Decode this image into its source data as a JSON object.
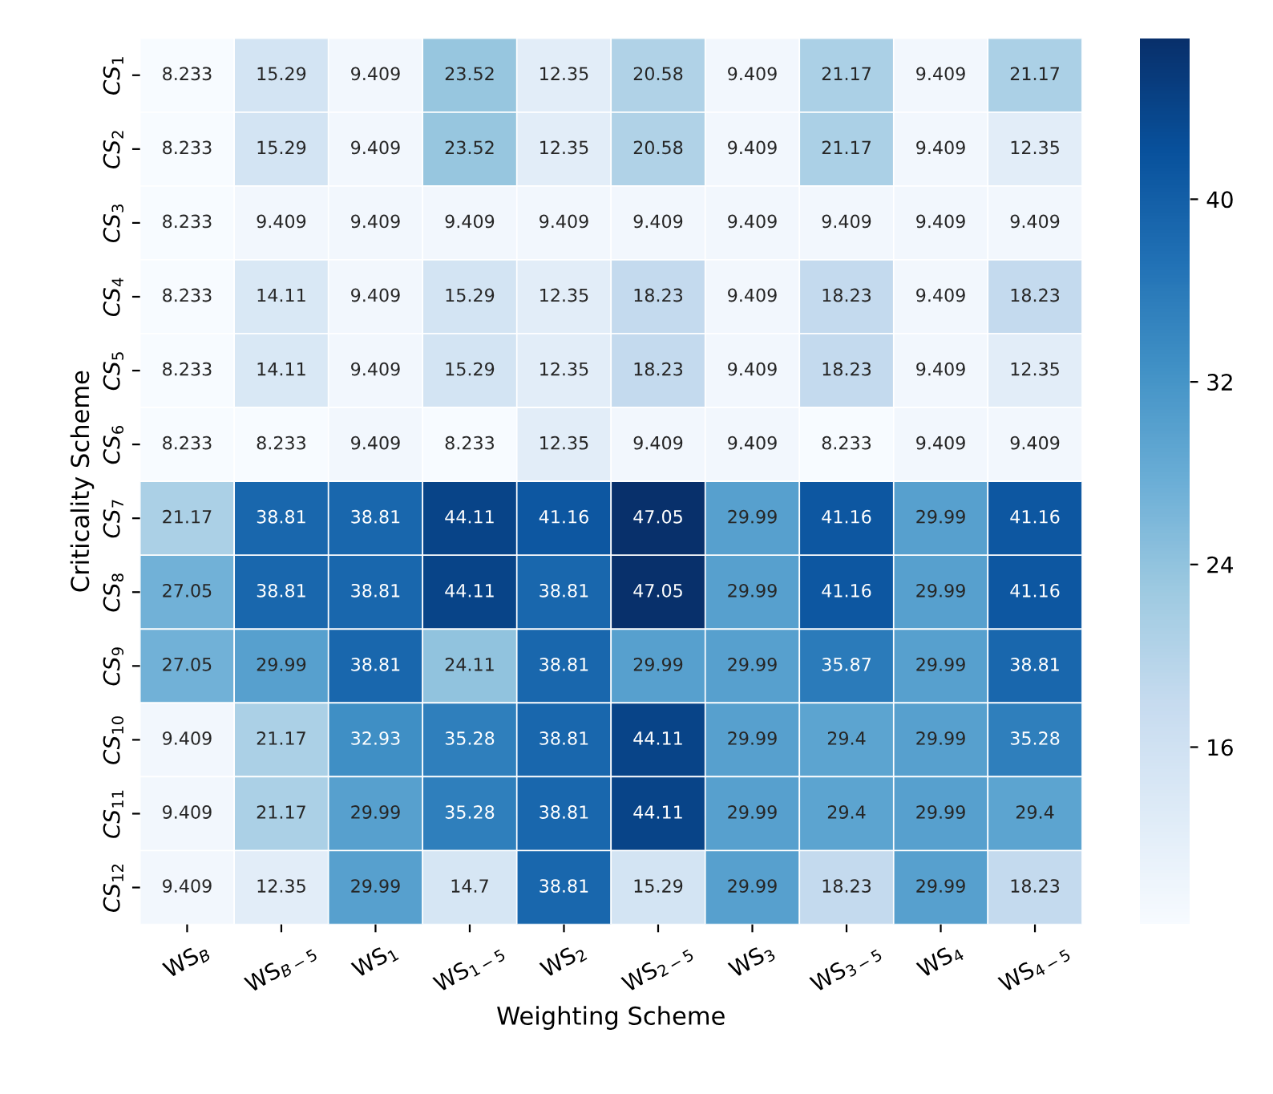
{
  "chart_data": {
    "type": "heatmap",
    "xlabel": "Weighting Scheme",
    "ylabel": "Criticality Scheme",
    "categories": [
      "WS$_{B}$",
      "WS$_{B−5}$",
      "WS$_{1}$",
      "WS$_{1−5}$",
      "WS$_{2}$",
      "WS$_{2−5}$",
      "WS$_{3}$",
      "WS$_{3−5}$",
      "WS$_{4}$",
      "WS$_{4−5}$"
    ],
    "y_categories": [
      "CS$_{1}$",
      "CS$_{2}$",
      "CS$_{3}$",
      "CS$_{4}$",
      "CS$_{5}$",
      "CS$_{6}$",
      "CS$_{7}$",
      "CS$_{8}$",
      "CS$_{9}$",
      "CS$_{10}$",
      "CS$_{11}$",
      "CS$_{12}$"
    ],
    "cells": [
      [
        8.233,
        15.29,
        9.409,
        23.52,
        12.35,
        20.58,
        9.409,
        21.17,
        9.409,
        21.17
      ],
      [
        8.233,
        15.29,
        9.409,
        23.52,
        12.35,
        20.58,
        9.409,
        21.17,
        9.409,
        12.35
      ],
      [
        8.233,
        9.409,
        9.409,
        9.409,
        9.409,
        9.409,
        9.409,
        9.409,
        9.409,
        9.409
      ],
      [
        8.233,
        14.11,
        9.409,
        15.29,
        12.35,
        18.23,
        9.409,
        18.23,
        9.409,
        18.23
      ],
      [
        8.233,
        14.11,
        9.409,
        15.29,
        12.35,
        18.23,
        9.409,
        18.23,
        9.409,
        12.35
      ],
      [
        8.233,
        8.233,
        9.409,
        8.233,
        12.35,
        9.409,
        9.409,
        8.233,
        9.409,
        9.409
      ],
      [
        21.17,
        38.81,
        38.81,
        44.11,
        41.16,
        47.05,
        29.99,
        41.16,
        29.99,
        41.16
      ],
      [
        27.05,
        38.81,
        38.81,
        44.11,
        38.81,
        47.05,
        29.99,
        41.16,
        29.99,
        41.16
      ],
      [
        27.05,
        29.99,
        38.81,
        24.11,
        38.81,
        29.99,
        29.99,
        35.87,
        29.99,
        38.81
      ],
      [
        9.409,
        21.17,
        32.93,
        35.28,
        38.81,
        44.11,
        29.99,
        29.4,
        29.99,
        35.28
      ],
      [
        9.409,
        21.17,
        29.99,
        35.28,
        38.81,
        44.11,
        29.99,
        29.4,
        29.99,
        29.4
      ],
      [
        9.409,
        12.35,
        29.99,
        14.7,
        38.81,
        15.29,
        29.99,
        18.23,
        29.99,
        18.23
      ]
    ],
    "clim": [
      8.233,
      47.05
    ],
    "cticks": [
      16,
      24,
      32,
      40
    ],
    "data_labels": true
  }
}
